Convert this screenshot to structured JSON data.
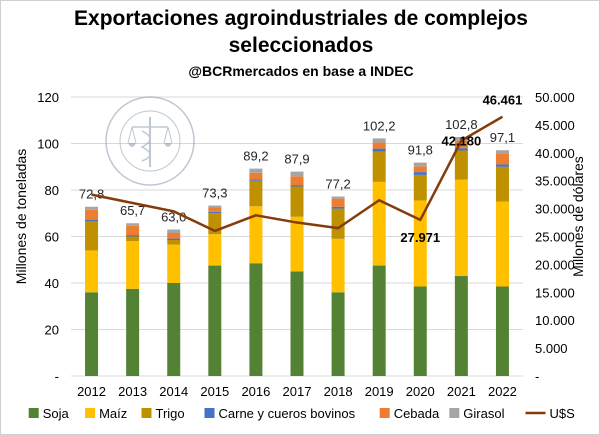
{
  "chart_data": {
    "type": "bar",
    "title_line1": "Exportaciones agroindustriales de complejos",
    "title_line2": "seleccionados",
    "subtitle": "@BCRmercados en base a INDEC",
    "ylabel_left": "Millones de toneladas",
    "ylabel_right": "Millones de dólares",
    "ylim_left": [
      0,
      120
    ],
    "ylim_right": [
      0,
      50000
    ],
    "yticks_left": [
      "-",
      "20",
      "40",
      "60",
      "80",
      "100",
      "120"
    ],
    "yticks_right": [
      "-",
      "5.000",
      "10.000",
      "15.000",
      "20.000",
      "25.000",
      "30.000",
      "35.000",
      "40.000",
      "45.000",
      "50.000"
    ],
    "categories": [
      "2012",
      "2013",
      "2014",
      "2015",
      "2016",
      "2017",
      "2018",
      "2019",
      "2020",
      "2021",
      "2022"
    ],
    "stacked": true,
    "series": [
      {
        "name": "Soja",
        "color": "#548235",
        "values": [
          36,
          37.5,
          40,
          47.5,
          48.5,
          45,
          36,
          47.5,
          38.5,
          43,
          38.5
        ]
      },
      {
        "name": "Maíz",
        "color": "#ffc000",
        "values": [
          18,
          20.5,
          16.5,
          13.5,
          24.5,
          23.5,
          23,
          36,
          37,
          41.5,
          36.5
        ]
      },
      {
        "name": "Trigo",
        "color": "#bf9000",
        "values": [
          12.5,
          2,
          2,
          9,
          11,
          13,
          13,
          13,
          11,
          12.5,
          15
        ]
      },
      {
        "name": "Carne y cueros bovinos",
        "color": "#4472c4",
        "values": [
          0.6,
          0.6,
          0.6,
          0.6,
          0.6,
          0.6,
          0.8,
          1.3,
          1.2,
          1.0,
          1.0
        ]
      },
      {
        "name": "Cebada",
        "color": "#ed7d31",
        "values": [
          4.4,
          4.0,
          2.4,
          1.9,
          2.8,
          3.8,
          3.5,
          2.6,
          2.5,
          3.2,
          4.5
        ]
      },
      {
        "name": "Girasol",
        "color": "#a5a5a5",
        "values": [
          1.3,
          1.1,
          1.5,
          0.8,
          1.8,
          2.0,
          0.9,
          1.8,
          1.6,
          1.6,
          1.6
        ]
      }
    ],
    "totals": [
      "72,8",
      "65,7",
      "63,0",
      "73,3",
      "89,2",
      "87,9",
      "77,2",
      "102,2",
      "91,8",
      "102,8",
      "97,1"
    ],
    "line": {
      "name": "U$S",
      "color": "#843c0c",
      "values": [
        32500,
        31000,
        29500,
        26000,
        28800,
        27500,
        26500,
        31500,
        27971,
        42180,
        46461
      ]
    },
    "line_labels": {
      "2020": "27.971",
      "2021": "42.180",
      "2022": "46.461"
    },
    "legend_position": "bottom",
    "grid": true
  },
  "logo": {
    "text": "BOLSA DE COMERCIO DE ROSARIO"
  }
}
